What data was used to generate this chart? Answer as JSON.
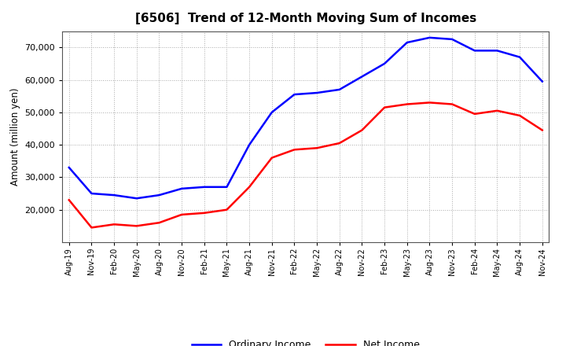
{
  "title": "[6506]  Trend of 12-Month Moving Sum of Incomes",
  "ylabel": "Amount (million yen)",
  "x_labels": [
    "Aug-19",
    "Nov-19",
    "Feb-20",
    "May-20",
    "Aug-20",
    "Nov-20",
    "Feb-21",
    "May-21",
    "Aug-21",
    "Nov-21",
    "Feb-22",
    "May-22",
    "Aug-22",
    "Nov-22",
    "Feb-23",
    "May-23",
    "Aug-23",
    "Nov-23",
    "Feb-24",
    "May-24",
    "Aug-24",
    "Nov-24"
  ],
  "ordinary_income": [
    33000,
    25000,
    24500,
    23500,
    24500,
    26500,
    27000,
    27000,
    40000,
    50000,
    55500,
    56000,
    57000,
    61000,
    65000,
    71500,
    73000,
    72500,
    69000,
    69000,
    67000,
    59500
  ],
  "net_income": [
    23000,
    14500,
    15500,
    15000,
    16000,
    18500,
    19000,
    20000,
    27000,
    36000,
    38500,
    39000,
    40500,
    44500,
    51500,
    52500,
    53000,
    52500,
    49500,
    50500,
    49000,
    44500
  ],
  "ordinary_color": "#0000ff",
  "net_color": "#ff0000",
  "background_color": "#ffffff",
  "grid_color": "#aaaaaa",
  "ylim": [
    10000,
    75000
  ],
  "yticks": [
    20000,
    30000,
    40000,
    50000,
    60000,
    70000
  ],
  "title_fontsize": 11,
  "legend_labels": [
    "Ordinary Income",
    "Net Income"
  ]
}
